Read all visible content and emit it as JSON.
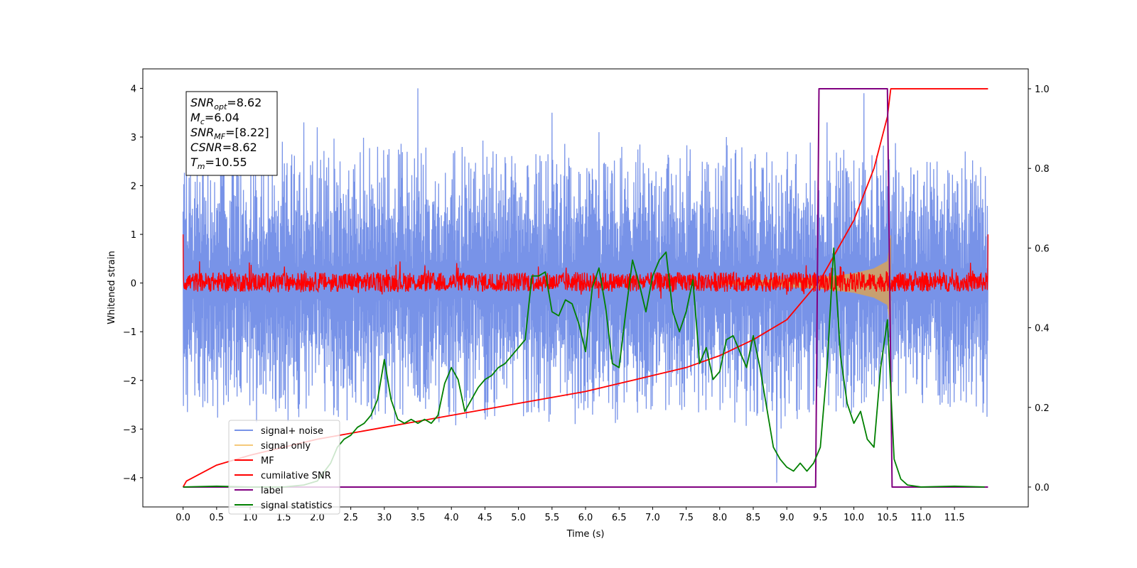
{
  "chart_data": {
    "type": "line",
    "xlabel": "Time (s)",
    "ylabel": "Whitened strain",
    "xlim": [
      -0.6,
      12.6
    ],
    "ylim": [
      -4.6,
      4.4
    ],
    "ylim_right": [
      -0.05,
      1.05
    ],
    "xticks": [
      "0.0",
      "0.5",
      "1.0",
      "1.5",
      "2.0",
      "2.5",
      "3.0",
      "3.5",
      "4.0",
      "4.5",
      "5.0",
      "5.5",
      "6.0",
      "6.5",
      "7.0",
      "7.5",
      "8.0",
      "8.5",
      "9.0",
      "9.5",
      "10.0",
      "10.5",
      "11.0",
      "11.5"
    ],
    "yticks_left": [
      "4",
      "3",
      "2",
      "1",
      "0",
      "−1",
      "−2",
      "−3",
      "−4"
    ],
    "yticks_right": [
      "1.0",
      "0.8",
      "0.6",
      "0.4",
      "0.2",
      "0.0"
    ],
    "annotation": {
      "lines": [
        {
          "sym": "SNR",
          "sub": "opt",
          "value": "=8.62"
        },
        {
          "sym": "M",
          "sub": "c",
          "value": "=6.04"
        },
        {
          "sym": "SNR",
          "sub": "MF",
          "value": "=[8.22]"
        },
        {
          "sym": "CSNR",
          "sub": "",
          "value": "=8.62"
        },
        {
          "sym": "T",
          "sub": "m",
          "value": "=10.55"
        }
      ]
    },
    "legend": {
      "position": "lower-left",
      "entries": [
        {
          "label": "signal+ noise",
          "color": "#7893e8"
        },
        {
          "label": "signal only",
          "color": "#f5c97a"
        },
        {
          "label": "MF",
          "color": "#ff0000"
        },
        {
          "label": "cumilative SNR",
          "color": "#ff0000"
        },
        {
          "label": "label",
          "color": "#800080"
        },
        {
          "label": "signal statistics",
          "color": "#008000"
        }
      ]
    },
    "series": [
      {
        "name": "signal+ noise",
        "axis": "left",
        "kind": "noise_band",
        "color": "#7893e8",
        "x_range": [
          0.0,
          12.0
        ],
        "band": [
          -1.4,
          1.6
        ],
        "peaks_x": [
          0.05,
          0.6,
          1.8,
          2.0,
          3.5,
          5.5,
          6.2,
          8.1,
          8.85,
          9.6,
          10.15
        ],
        "peaks_y": [
          3.0,
          2.6,
          3.3,
          3.2,
          4.0,
          3.5,
          3.1,
          3.0,
          -4.1,
          3.3,
          3.9
        ],
        "envelope_x": [
          0,
          3,
          6,
          9,
          12
        ],
        "envelope_y": [
          2.8,
          3.1,
          2.9,
          3.0,
          2.8
        ]
      },
      {
        "name": "signal only",
        "axis": "left",
        "kind": "chirp",
        "color": "#c8a070",
        "x": [
          8.0,
          9.0,
          9.5,
          10.0,
          10.3,
          10.5,
          10.55
        ],
        "amp": [
          0.03,
          0.08,
          0.12,
          0.2,
          0.3,
          0.45,
          0.98
        ]
      },
      {
        "name": "MF",
        "axis": "left",
        "kind": "noise_band",
        "color": "#ff0000",
        "x_range": [
          0.0,
          12.0
        ],
        "band": [
          -0.18,
          0.22
        ],
        "edges": [
          1.0,
          1.0
        ]
      },
      {
        "name": "cumilative SNR",
        "axis": "right",
        "color": "#ff0000",
        "x": [
          0.0,
          0.05,
          0.5,
          1.0,
          1.5,
          2.0,
          2.5,
          3.0,
          3.5,
          4.0,
          4.5,
          5.0,
          5.5,
          6.0,
          6.5,
          7.0,
          7.5,
          8.0,
          8.5,
          9.0,
          9.5,
          10.0,
          10.3,
          10.5,
          10.55,
          12.0
        ],
        "y": [
          0.0,
          0.015,
          0.055,
          0.08,
          0.1,
          0.12,
          0.135,
          0.15,
          0.165,
          0.18,
          0.195,
          0.21,
          0.225,
          0.24,
          0.26,
          0.28,
          0.3,
          0.33,
          0.37,
          0.42,
          0.52,
          0.67,
          0.8,
          0.93,
          1.0,
          1.0
        ]
      },
      {
        "name": "label",
        "axis": "right",
        "color": "#800080",
        "x": [
          0.0,
          9.43,
          9.48,
          10.5,
          10.57,
          12.0
        ],
        "y": [
          0.0,
          0.0,
          1.0,
          1.0,
          0.0,
          0.0
        ]
      },
      {
        "name": "signal statistics",
        "axis": "right",
        "color": "#008000",
        "x": [
          0.0,
          0.5,
          1.0,
          1.5,
          1.8,
          2.0,
          2.2,
          2.3,
          2.4,
          2.5,
          2.6,
          2.7,
          2.8,
          2.9,
          3.0,
          3.1,
          3.2,
          3.3,
          3.4,
          3.5,
          3.6,
          3.7,
          3.8,
          3.9,
          4.0,
          4.1,
          4.2,
          4.3,
          4.4,
          4.5,
          4.6,
          4.7,
          4.8,
          4.9,
          5.0,
          5.1,
          5.2,
          5.3,
          5.4,
          5.5,
          5.6,
          5.7,
          5.8,
          5.9,
          6.0,
          6.1,
          6.2,
          6.3,
          6.4,
          6.5,
          6.6,
          6.7,
          6.8,
          6.9,
          7.0,
          7.1,
          7.2,
          7.3,
          7.4,
          7.5,
          7.6,
          7.7,
          7.8,
          7.9,
          8.0,
          8.1,
          8.2,
          8.3,
          8.4,
          8.5,
          8.6,
          8.7,
          8.8,
          8.9,
          9.0,
          9.1,
          9.2,
          9.3,
          9.4,
          9.5,
          9.6,
          9.7,
          9.8,
          9.9,
          10.0,
          10.1,
          10.2,
          10.3,
          10.4,
          10.5,
          10.6,
          10.7,
          10.8,
          11.0,
          11.5,
          11.95
        ],
        "y": [
          0.0,
          0.002,
          0.0,
          0.0,
          0.005,
          0.015,
          0.06,
          0.1,
          0.12,
          0.13,
          0.15,
          0.16,
          0.18,
          0.22,
          0.32,
          0.22,
          0.17,
          0.16,
          0.17,
          0.16,
          0.17,
          0.16,
          0.18,
          0.26,
          0.3,
          0.27,
          0.19,
          0.22,
          0.25,
          0.27,
          0.28,
          0.3,
          0.31,
          0.33,
          0.35,
          0.37,
          0.53,
          0.53,
          0.54,
          0.44,
          0.43,
          0.47,
          0.46,
          0.41,
          0.34,
          0.5,
          0.55,
          0.45,
          0.31,
          0.3,
          0.44,
          0.57,
          0.51,
          0.44,
          0.53,
          0.57,
          0.59,
          0.44,
          0.39,
          0.44,
          0.52,
          0.31,
          0.35,
          0.27,
          0.29,
          0.37,
          0.38,
          0.34,
          0.3,
          0.38,
          0.3,
          0.2,
          0.1,
          0.07,
          0.05,
          0.04,
          0.06,
          0.04,
          0.06,
          0.1,
          0.3,
          0.6,
          0.33,
          0.21,
          0.16,
          0.19,
          0.12,
          0.1,
          0.3,
          0.42,
          0.07,
          0.02,
          0.005,
          0.0,
          0.002,
          0.0
        ]
      }
    ]
  }
}
